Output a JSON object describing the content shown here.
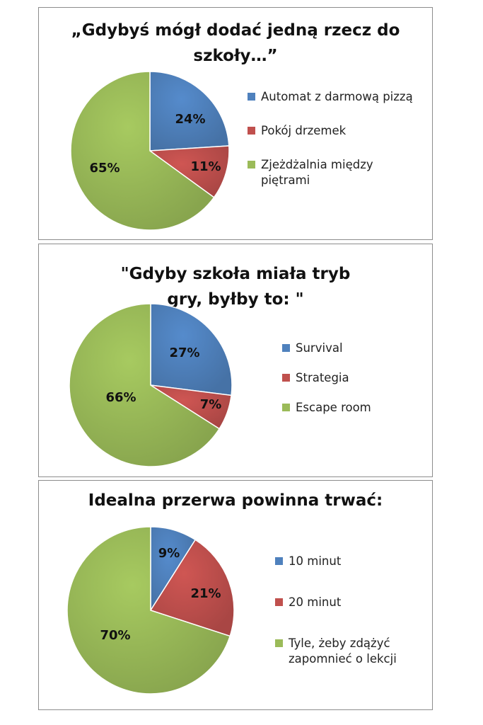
{
  "chart_data": [
    {
      "type": "pie",
      "title": "„Gdybyś mógł dodać jedną rzecz do szkoły…”",
      "slices": [
        {
          "label": "Automat z darmową pizzą",
          "value": 24,
          "value_label": "24%",
          "color": "#4f81bd"
        },
        {
          "label": "Pokój drzemek",
          "value": 11,
          "value_label": "11%",
          "color": "#c0504d"
        },
        {
          "label": "Zjeżdżalnia między piętrami",
          "value": 65,
          "value_label": "65%",
          "color": "#9bbb59"
        }
      ],
      "legend": "right"
    },
    {
      "type": "pie",
      "title": "\"Gdyby szkoła miała tryb gry, byłby to: \"",
      "slices": [
        {
          "label": "Survival",
          "value": 27,
          "value_label": "27%",
          "color": "#4f81bd"
        },
        {
          "label": "Strategia",
          "value": 7,
          "value_label": "7%",
          "color": "#c0504d"
        },
        {
          "label": "Escape room",
          "value": 66,
          "value_label": "66%",
          "color": "#9bbb59"
        }
      ],
      "legend": "right"
    },
    {
      "type": "pie",
      "title": "Idealna przerwa powinna trwać:",
      "slices": [
        {
          "label": "10 minut",
          "value": 9,
          "value_label": "9%",
          "color": "#4f81bd"
        },
        {
          "label": "20 minut",
          "value": 21,
          "value_label": "21%",
          "color": "#c0504d"
        },
        {
          "label": "Tyle, żeby zdążyć zapomnieć o lekcji",
          "value": 70,
          "value_label": "70%",
          "color": "#9bbb59"
        }
      ],
      "legend": "right"
    }
  ]
}
